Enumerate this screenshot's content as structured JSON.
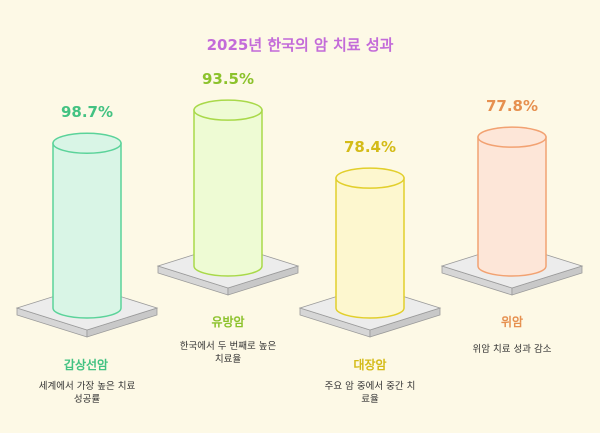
{
  "colors": {
    "background": "#fdf9e6",
    "title": "#c36bd9",
    "platform_top": "#ececec",
    "platform_side": "#d6d6d6"
  },
  "chart_data": {
    "type": "bar",
    "title": "2025년 한국의 암 치료 성과",
    "categories": [
      "갑상선암",
      "유방암",
      "대장암",
      "위암"
    ],
    "values": [
      98.7,
      93.5,
      78.4,
      77.8
    ],
    "value_labels": [
      "98.7%",
      "93.5%",
      "78.4%",
      "77.8%"
    ],
    "descriptions": [
      [
        "세계에서 가장 높은 치료",
        "성공률"
      ],
      [
        "한국에서 두 번째로 높은",
        "치료율"
      ],
      [
        "주요 암 중에서 중간 치",
        "료율"
      ],
      [
        "위암 치료 성과 감소"
      ]
    ],
    "series_colors": [
      {
        "fill": "#d9f5e6",
        "stroke": "#5bd39a",
        "text": "#43c282"
      },
      {
        "fill": "#eefbd4",
        "stroke": "#a9d94a",
        "text": "#8cc22c"
      },
      {
        "fill": "#fdf7cf",
        "stroke": "#e2cf2c",
        "text": "#d4bb18"
      },
      {
        "fill": "#fde6d8",
        "stroke": "#f2a272",
        "text": "#e6904f"
      }
    ]
  }
}
